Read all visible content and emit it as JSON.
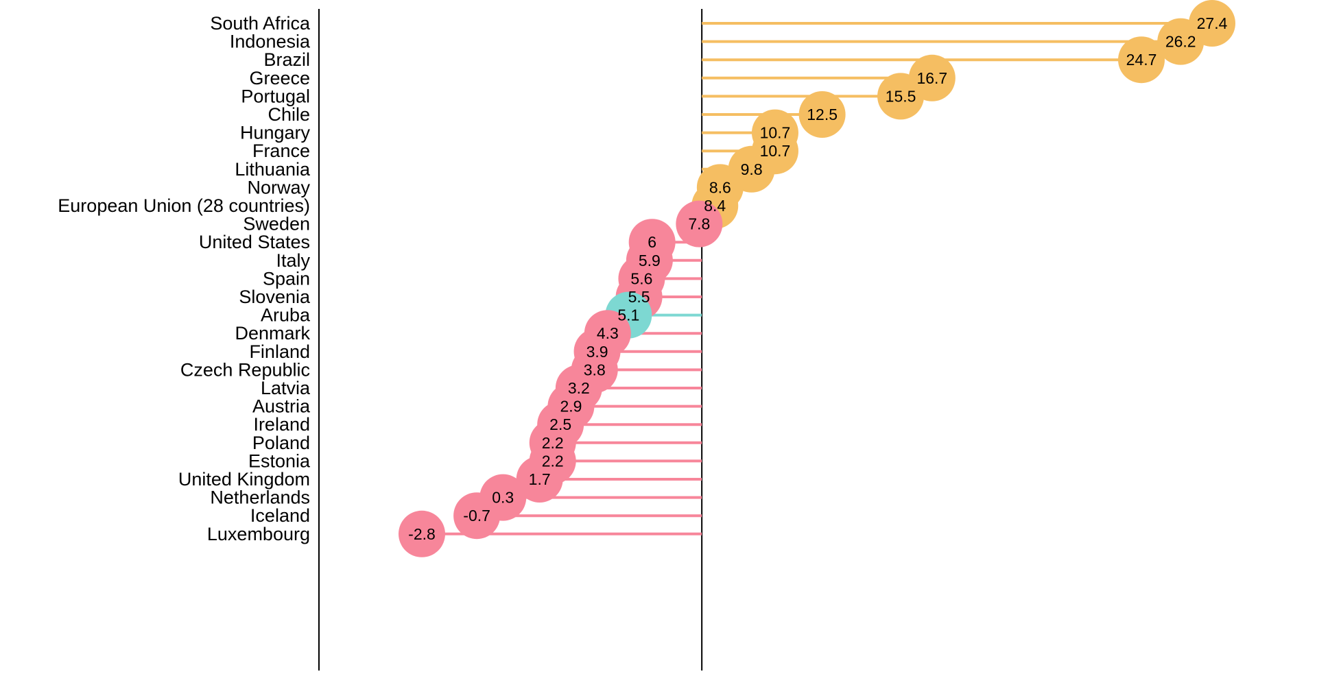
{
  "chart_data": {
    "type": "lollipop",
    "title": "",
    "xlabel": "",
    "ylabel": "",
    "orientation": "horizontal",
    "grid": false,
    "legend": "none",
    "reference_line": 7.9,
    "categories": [
      "South Africa",
      "Indonesia",
      "Brazil",
      "Greece",
      "Portugal",
      "Chile",
      "Hungary",
      "France",
      "Lithuania",
      "Norway",
      "European Union (28 countries)",
      "Sweden",
      "United States",
      "Italy",
      "Spain",
      "Slovenia",
      "Aruba",
      "Denmark",
      "Finland",
      "Czech Republic",
      "Latvia",
      "Austria",
      "Ireland",
      "Poland",
      "Estonia",
      "United Kingdom",
      "Netherlands",
      "Iceland",
      "Luxembourg"
    ],
    "values": [
      27.4,
      26.2,
      24.7,
      16.7,
      15.5,
      12.5,
      10.7,
      10.7,
      9.8,
      8.6,
      8.4,
      7.8,
      6,
      5.9,
      5.6,
      5.5,
      5.1,
      4.3,
      3.9,
      3.8,
      3.2,
      2.9,
      2.5,
      2.2,
      2.2,
      1.7,
      0.3,
      -0.7,
      -2.8
    ],
    "value_labels": [
      "27.4",
      "26.2",
      "24.7",
      "16.7",
      "15.5",
      "12.5",
      "10.7",
      "10.7",
      "9.8",
      "8.6",
      "8.4",
      "7.8",
      "6",
      "5.9",
      "5.6",
      "5.5",
      "5.1",
      "4.3",
      "3.9",
      "3.8",
      "3.2",
      "2.9",
      "2.5",
      "2.2",
      "2.2",
      "1.7",
      "0.3",
      "-0.7",
      "-2.8"
    ],
    "xlim": [
      -2.8,
      27.4
    ],
    "colors": {
      "above": "#F5BE62",
      "below": "#F7869A",
      "highlight": "#7DD8D2",
      "axis": "#000000"
    },
    "highlight_category": "Aruba"
  }
}
